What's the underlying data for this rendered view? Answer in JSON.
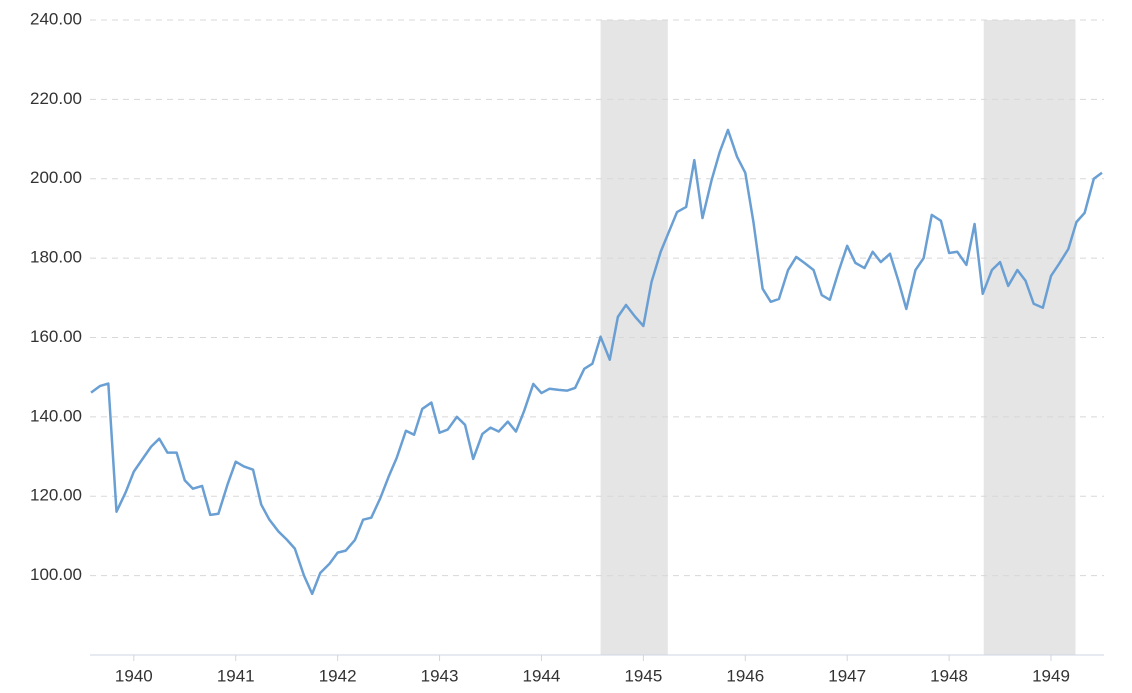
{
  "chart_data": {
    "type": "line",
    "x": [
      1940.08,
      1940.17,
      1940.25,
      1940.33,
      1940.42,
      1940.5,
      1940.58,
      1940.67,
      1940.75,
      1940.83,
      1940.92,
      1941.0,
      1941.08,
      1941.17,
      1941.25,
      1941.33,
      1941.42,
      1941.5,
      1941.58,
      1941.67,
      1941.75,
      1941.83,
      1941.92,
      1942.0,
      1942.08,
      1942.17,
      1942.25,
      1942.33,
      1942.42,
      1942.5,
      1942.58,
      1942.67,
      1942.75,
      1942.83,
      1942.92,
      1943.0,
      1943.08,
      1943.17,
      1943.25,
      1943.33,
      1943.42,
      1943.5,
      1943.58,
      1943.67,
      1943.75,
      1943.83,
      1943.92,
      1944.0,
      1944.08,
      1944.17,
      1944.25,
      1944.33,
      1944.42,
      1944.5,
      1944.58,
      1944.67,
      1944.75,
      1944.83,
      1944.92,
      1945.0,
      1945.08,
      1945.17,
      1945.25,
      1945.33,
      1945.42,
      1945.5,
      1945.58,
      1945.67,
      1945.75,
      1945.83,
      1945.92,
      1946.0,
      1946.08,
      1946.17,
      1946.25,
      1946.33,
      1946.42,
      1946.5,
      1946.58,
      1946.67,
      1946.75,
      1946.83,
      1946.92,
      1947.0,
      1947.08,
      1947.17,
      1947.25,
      1947.33,
      1947.42,
      1947.5,
      1947.58,
      1947.67,
      1947.75,
      1947.83,
      1947.92,
      1948.0,
      1948.08,
      1948.17,
      1948.25,
      1948.33,
      1948.42,
      1948.5,
      1948.58,
      1948.67,
      1948.75,
      1948.83,
      1948.92,
      1949.0,
      1949.08,
      1949.17,
      1949.25,
      1949.33,
      1949.42,
      1949.5,
      1949.58,
      1949.67,
      1949.75,
      1949.83,
      1949.92,
      1950.0
    ],
    "values": [
      146.1,
      147.8,
      148.4,
      116.1,
      121,
      126.2,
      129.2,
      132.5,
      134.5,
      131,
      131,
      124,
      121.9,
      122.6,
      115.3,
      115.6,
      123,
      128.7,
      127.5,
      126.7,
      117.9,
      114.1,
      111.1,
      109.1,
      106.8,
      100,
      95.4,
      100.7,
      103,
      105.8,
      106.3,
      109,
      114.1,
      114.6,
      119.6,
      124.9,
      129.7,
      136.5,
      135.5,
      142,
      143.6,
      136,
      136.8,
      140,
      138,
      129.4,
      135.7,
      137.3,
      136.3,
      138.8,
      136.3,
      141.5,
      148.3,
      146,
      147.1,
      146.8,
      146.6,
      147.3,
      152.1,
      153.4,
      160.2,
      154.4,
      165.2,
      168.2,
      165.2,
      162.9,
      174,
      181.6,
      186.6,
      191.6,
      192.9,
      204.7,
      190.1,
      199.7,
      206.8,
      212.3,
      205.5,
      201.5,
      189.1,
      172.3,
      169,
      169.7,
      177,
      180.3,
      178.8,
      177,
      170.7,
      169.5,
      177,
      183.1,
      178.8,
      177.5,
      181.6,
      179,
      181.1,
      174.5,
      167.2,
      177,
      180,
      190.9,
      189.4,
      181.3,
      181.6,
      178.3,
      188.6,
      171,
      177,
      179,
      173,
      177,
      174.3,
      168.5,
      167.5,
      175.5,
      178.6,
      182.3,
      189.1,
      191.4,
      200,
      201.5
    ],
    "color": "#6a9fd4",
    "shaded_ranges": [
      [
        1945.08,
        1945.74
      ],
      [
        1948.84,
        1949.74
      ]
    ],
    "shade_color": "#e5e5e5",
    "xlim": [
      1940.07,
      1950.02
    ],
    "xticks": [
      {
        "value": 1940.5,
        "label": "1940"
      },
      {
        "value": 1941.5,
        "label": "1941"
      },
      {
        "value": 1942.5,
        "label": "1942"
      },
      {
        "value": 1943.5,
        "label": "1943"
      },
      {
        "value": 1944.5,
        "label": "1944"
      },
      {
        "value": 1945.5,
        "label": "1945"
      },
      {
        "value": 1946.5,
        "label": "1946"
      },
      {
        "value": 1947.5,
        "label": "1947"
      },
      {
        "value": 1948.5,
        "label": "1948"
      },
      {
        "value": 1949.5,
        "label": "1949"
      }
    ],
    "ylim": [
      80,
      240
    ],
    "yticks": [
      {
        "value": 100,
        "label": "100.00"
      },
      {
        "value": 120,
        "label": "120.00"
      },
      {
        "value": 140,
        "label": "140.00"
      },
      {
        "value": 160,
        "label": "160.00"
      },
      {
        "value": 180,
        "label": "180.00"
      },
      {
        "value": 200,
        "label": "200.00"
      },
      {
        "value": 220,
        "label": "220.00"
      },
      {
        "value": 240,
        "label": "240.00"
      }
    ],
    "grid": true
  }
}
